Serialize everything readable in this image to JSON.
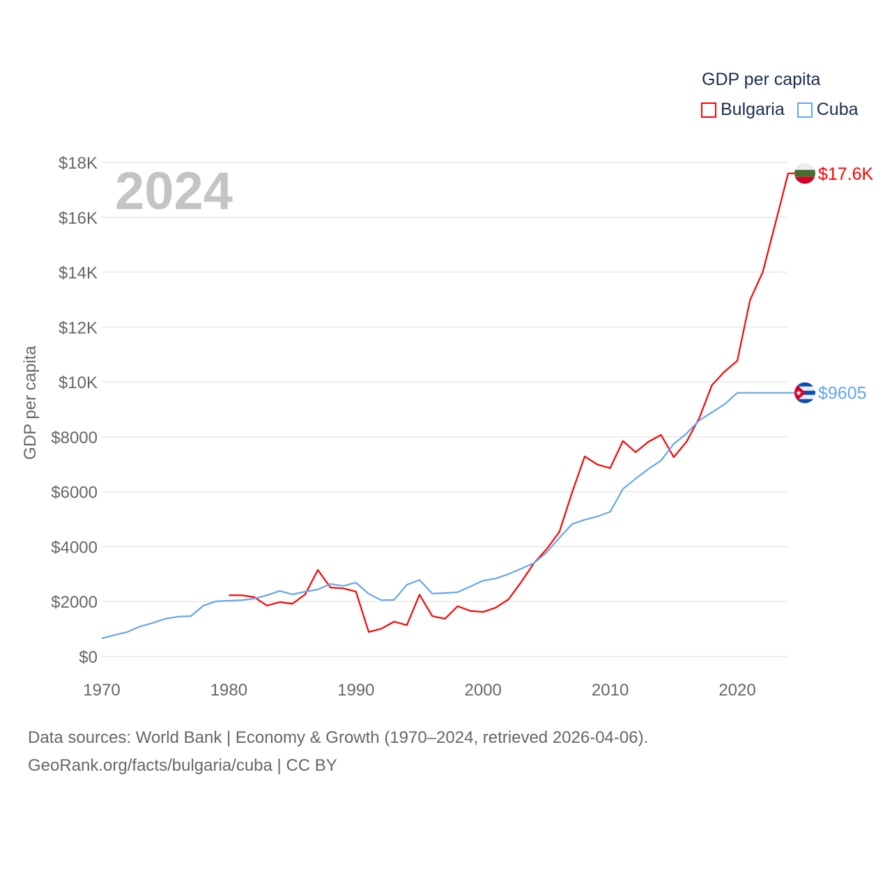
{
  "chart_data": {
    "type": "line",
    "title": "GDP per capita",
    "year_watermark": "2024",
    "ylabel": "GDP per capita",
    "xlabel": "",
    "xlim": [
      1970,
      2024
    ],
    "ylim": [
      0,
      18000
    ],
    "grid": true,
    "legend_position": "top-right",
    "x_ticks": [
      1970,
      1980,
      1990,
      2000,
      2010,
      2020
    ],
    "y_ticks": [
      {
        "value": 0,
        "label": "$0"
      },
      {
        "value": 2000,
        "label": "$2000"
      },
      {
        "value": 4000,
        "label": "$4000"
      },
      {
        "value": 6000,
        "label": "$6000"
      },
      {
        "value": 8000,
        "label": "$8000"
      },
      {
        "value": 10000,
        "label": "$10K"
      },
      {
        "value": 12000,
        "label": "$12K"
      },
      {
        "value": 14000,
        "label": "$14K"
      },
      {
        "value": 16000,
        "label": "$16K"
      },
      {
        "value": 18000,
        "label": "$18K"
      }
    ],
    "series": [
      {
        "name": "Bulgaria",
        "color": "#ff0000",
        "end_label": "$17.6K",
        "flag": "bulgaria-flag",
        "start_year": 1980,
        "values": [
          2230,
          2230,
          2160,
          1850,
          1980,
          1920,
          2260,
          3150,
          2510,
          2480,
          2360,
          890,
          1010,
          1270,
          1140,
          2250,
          1470,
          1370,
          1830,
          1660,
          1620,
          1780,
          2080,
          2710,
          3400,
          3910,
          4540,
          5970,
          7290,
          6990,
          6860,
          7850,
          7440,
          7820,
          8070,
          7260,
          7820,
          8680,
          9880,
          10380,
          10770,
          12980,
          14000,
          15790,
          17600
        ]
      },
      {
        "name": "Cuba",
        "color": "#63a6ec",
        "end_label": "$9605",
        "flag": "cuba-flag",
        "start_year": 1970,
        "values": [
          660,
          780,
          890,
          1090,
          1220,
          1370,
          1450,
          1470,
          1850,
          2010,
          2030,
          2050,
          2110,
          2230,
          2390,
          2260,
          2360,
          2440,
          2640,
          2570,
          2690,
          2280,
          2050,
          2060,
          2610,
          2790,
          2290,
          2310,
          2340,
          2550,
          2760,
          2840,
          3000,
          3200,
          3400,
          3790,
          4320,
          4820,
          4980,
          5100,
          5270,
          6100,
          6480,
          6830,
          7140,
          7740,
          8120,
          8600,
          8890,
          9190,
          9605,
          9605,
          9605,
          9605,
          9605
        ]
      }
    ]
  },
  "footer": {
    "line1": "Data sources: World Bank | Economy & Growth (1970–2024, retrieved 2026-04-06).",
    "line2": "GeoRank.org/facts/bulgaria/cuba | CC BY"
  }
}
